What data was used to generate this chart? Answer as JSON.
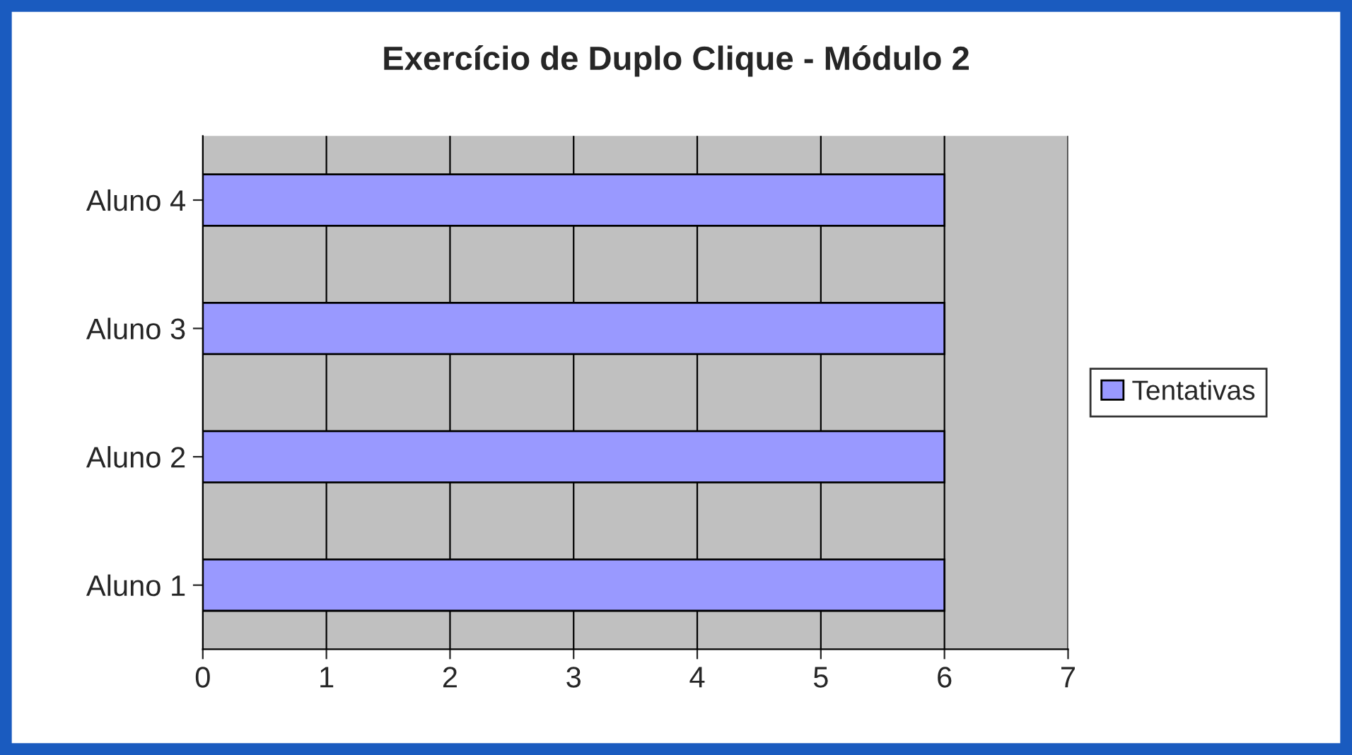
{
  "chart_data": {
    "type": "bar",
    "orientation": "horizontal",
    "title": "Exercício de Duplo Clique - Módulo 2",
    "categories": [
      "Aluno 4",
      "Aluno 3",
      "Aluno 2",
      "Aluno 1"
    ],
    "series": [
      {
        "name": "Tentativas",
        "color": "#9999ff",
        "values": [
          6,
          6,
          6,
          6
        ]
      }
    ],
    "xlim": [
      0,
      7
    ],
    "xticks": [
      0,
      1,
      2,
      3,
      4,
      5,
      6,
      7
    ],
    "grid": "x",
    "legend": "right"
  }
}
